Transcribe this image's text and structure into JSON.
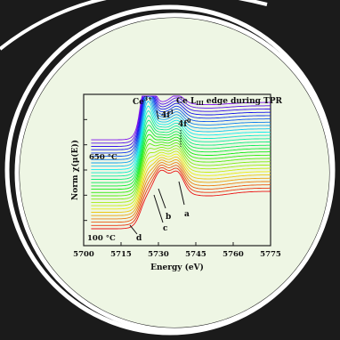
{
  "colors": {
    "background": "#1b1b1b",
    "ring": "#ffffff",
    "panel": "#eef6e4",
    "axis": "#222222",
    "text": "#111111",
    "spectrum_bottom": "#ff0000",
    "spectrum_top": "#7a4cff"
  },
  "chart_data": {
    "type": "line",
    "title": "Ce L_III edge during TPR",
    "title_main": "Ce L",
    "title_sub": "III",
    "title_rest": " edge during TPR",
    "xlabel": "Energy (eV)",
    "ylabel": "Norm χ(μ(E))",
    "x_ticks": [
      "5700",
      "5715",
      "5730",
      "5745",
      "5760",
      "5775"
    ],
    "x_tick_values": [
      5700,
      5715,
      5730,
      5745,
      5760,
      5775
    ],
    "xlim": [
      5700,
      5775
    ],
    "ylim": [
      0,
      1
    ],
    "series_count": 28,
    "labels": {
      "temp_high": "650 °C",
      "temp_low": "100 °C",
      "peak_ce3": "Ce",
      "peak_ce3_sup": "3+",
      "peak_4f1": "4f",
      "peak_4f1_sup": "1",
      "peak_4f0": "4f",
      "peak_4f0_sup": "0",
      "a": "a",
      "b": "b",
      "c": "c",
      "d": "d"
    },
    "features": {
      "ce3_peak_energy": 5725.5,
      "f1_energy": 5730,
      "f0_energy": 5737.5,
      "a_energy": 5737.5,
      "b_energy": 5731,
      "c_energy": 5727,
      "d_energy": 5721
    }
  }
}
